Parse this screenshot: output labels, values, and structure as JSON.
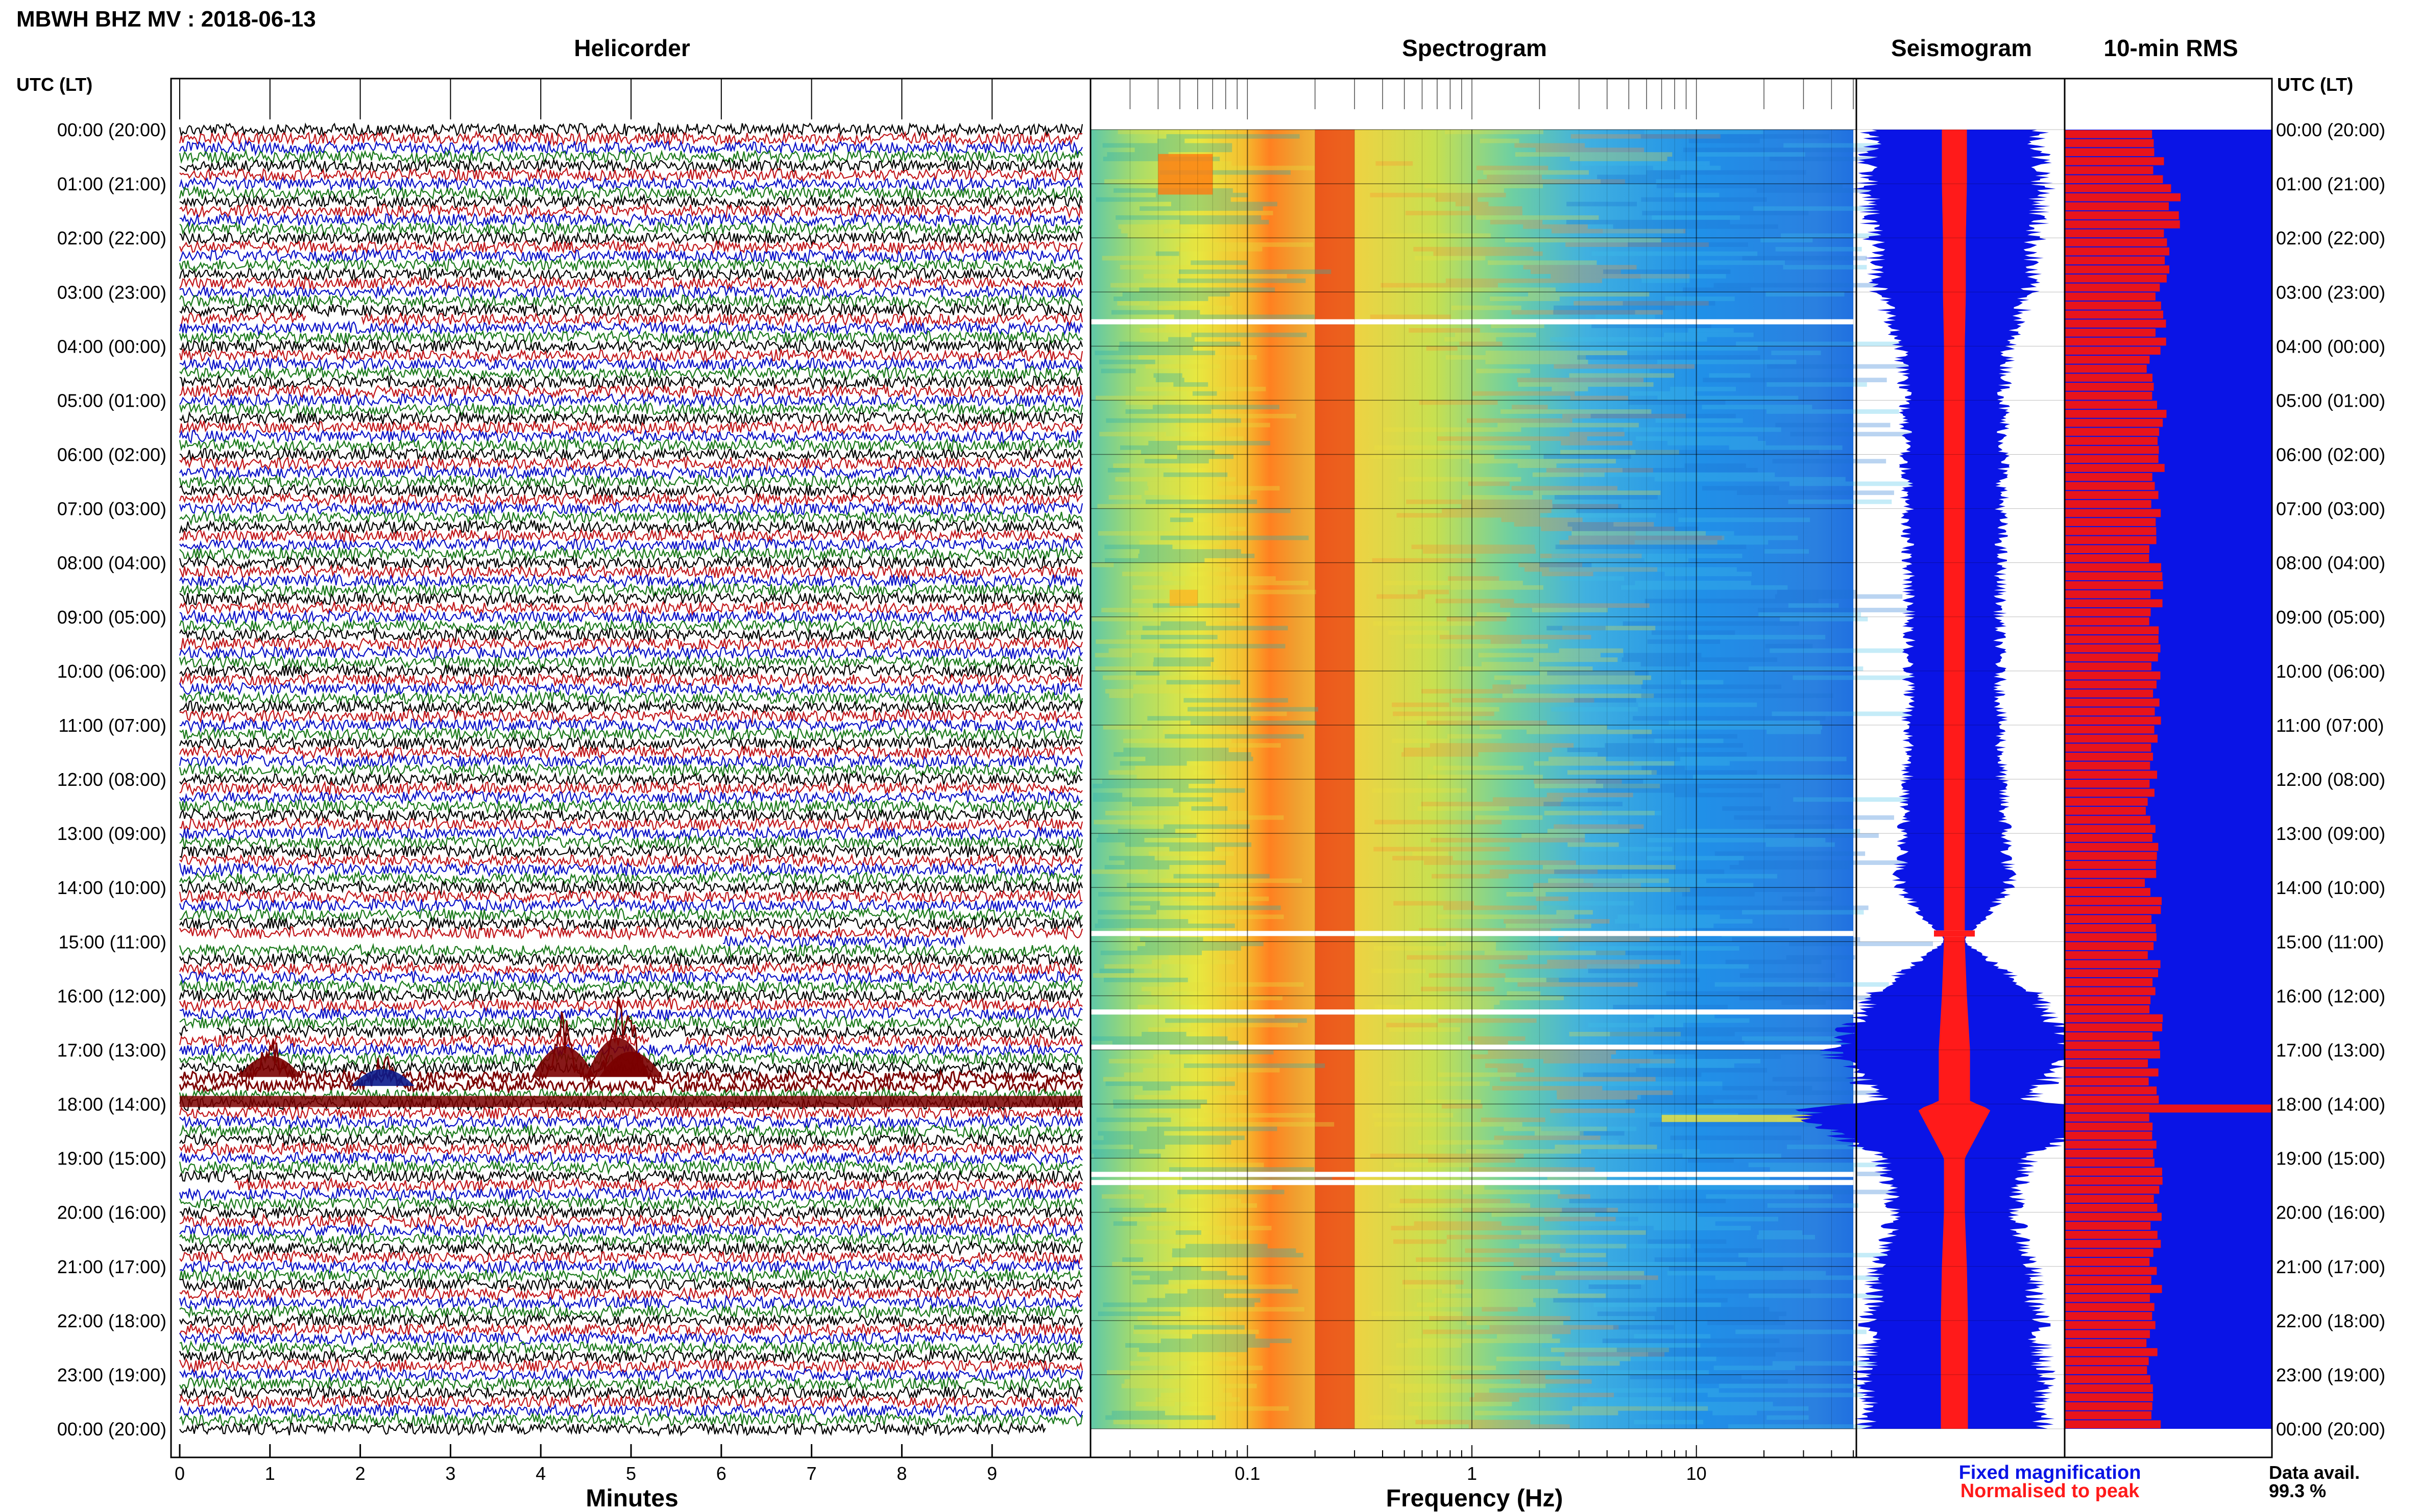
{
  "title": "MBWH BHZ MV : 2018-06-13",
  "colors": {
    "trace_cycle": [
      "#000000",
      "#c1171b",
      "#0b12c8",
      "#1b7a1b"
    ],
    "event": "#7a0000",
    "seis_blue": "#0a14e6",
    "seis_red": "#ff1a1a",
    "rms_blue": "#0a14e6",
    "rms_red": "#e8141b",
    "grid": "#000000"
  },
  "time_axis": {
    "left_title": "UTC (LT)",
    "right_title": "UTC (LT)",
    "labels": [
      "00:00 (20:00)",
      "01:00 (21:00)",
      "02:00 (22:00)",
      "03:00 (23:00)",
      "04:00 (00:00)",
      "05:00 (01:00)",
      "06:00 (02:00)",
      "07:00 (03:00)",
      "08:00 (04:00)",
      "09:00 (05:00)",
      "10:00 (06:00)",
      "11:00 (07:00)",
      "12:00 (08:00)",
      "13:00 (09:00)",
      "14:00 (10:00)",
      "15:00 (11:00)",
      "16:00 (12:00)",
      "17:00 (13:00)",
      "18:00 (14:00)",
      "19:00 (15:00)",
      "20:00 (16:00)",
      "21:00 (17:00)",
      "22:00 (18:00)",
      "23:00 (19:00)",
      "00:00 (20:00)"
    ]
  },
  "chart_data": [
    {
      "type": "line",
      "panel": "helicorder",
      "title": "Helicorder",
      "xlabel": "Minutes",
      "xlim": [
        0,
        10
      ],
      "x_ticks": [
        "0",
        "1",
        "2",
        "3",
        "4",
        "5",
        "6",
        "7",
        "8",
        "9"
      ],
      "rows": 144,
      "rows_per_hour": 6,
      "gaps": [
        {
          "hour": 3.5,
          "from_min": 1.4,
          "to_min": 2.0
        },
        {
          "hour": 15.0,
          "from_min": 0.0,
          "to_min": 6.0
        },
        {
          "hour": 15.0,
          "from_min": 8.7,
          "to_min": 10.0
        },
        {
          "hour": 16.6,
          "from_min": 0.1,
          "to_min": 0.4
        },
        {
          "hour": 16.9,
          "from_min": 5.2,
          "to_min": 5.6
        },
        {
          "hour": 19.5,
          "from_min": 0.0,
          "to_min": 0.6
        }
      ],
      "events": [
        {
          "hour": 17.5,
          "minute": 1.0,
          "amplitude": 1.5
        },
        {
          "hour": 17.5,
          "minute": 4.25,
          "amplitude": 2.2
        },
        {
          "hour": 17.5,
          "minute": 4.85,
          "amplitude": 2.8
        },
        {
          "hour": 17.5,
          "minute": 5.0,
          "amplitude": 1.8
        },
        {
          "hour": 17.7,
          "minute": 2.25,
          "amplitude": 1.2
        }
      ]
    },
    {
      "type": "heatmap",
      "panel": "spectrogram",
      "title": "Spectrogram",
      "xlabel": "Frequency (Hz)",
      "xscale": "log",
      "xlim": [
        0.02,
        50
      ],
      "x_ticks": [
        0.1,
        1,
        10
      ],
      "x_tick_labels": [
        "0.1",
        "1",
        "10"
      ],
      "ylim": [
        0,
        24
      ],
      "peak_band_hz": [
        0.2,
        0.3
      ],
      "gaps_utc_hours": [
        3.55,
        14.85,
        16.3,
        16.95,
        19.3,
        19.45
      ]
    },
    {
      "type": "line",
      "panel": "seismogram",
      "title": "Seismogram",
      "legend": [
        "Fixed magnification",
        "Normalised to peak"
      ],
      "ylim": [
        0,
        24
      ],
      "envelope_hours": [
        0,
        1,
        2,
        3,
        4,
        5,
        6,
        7,
        8,
        9,
        10,
        11,
        12,
        13,
        14,
        15,
        16,
        17,
        17.95,
        18.1,
        19,
        20,
        21,
        22,
        23,
        24
      ],
      "envelope_fixed": [
        0.85,
        0.9,
        0.82,
        0.75,
        0.55,
        0.5,
        0.5,
        0.48,
        0.47,
        0.46,
        0.46,
        0.47,
        0.48,
        0.52,
        0.56,
        0.1,
        0.85,
        1.25,
        0.75,
        1.6,
        0.75,
        0.6,
        0.78,
        0.85,
        0.9,
        0.88
      ],
      "envelope_norm": [
        0.12,
        0.12,
        0.11,
        0.11,
        0.1,
        0.1,
        0.1,
        0.1,
        0.1,
        0.1,
        0.1,
        0.1,
        0.1,
        0.1,
        0.1,
        0.1,
        0.12,
        0.15,
        0.15,
        0.35,
        0.1,
        0.1,
        0.12,
        0.13,
        0.13,
        0.13
      ]
    },
    {
      "type": "bar",
      "panel": "rms",
      "title": "10-min RMS",
      "orientation": "horizontal",
      "ylim": [
        0,
        24
      ],
      "bins": 144,
      "max_value": 1.0,
      "rms_hourly": [
        0.45,
        0.52,
        0.48,
        0.46,
        0.43,
        0.46,
        0.45,
        0.44,
        0.45,
        0.44,
        0.44,
        0.44,
        0.42,
        0.42,
        0.44,
        0.43,
        0.44,
        0.43,
        0.42,
        0.45,
        0.44,
        0.44,
        0.42,
        0.43
      ],
      "spike": {
        "hour": 17.95,
        "value": 1.0
      },
      "spike_side": {
        "hour": 18.05,
        "value": 0.7
      },
      "data_availability_label": "Data avail.",
      "data_availability_value": "99.3 %"
    }
  ]
}
